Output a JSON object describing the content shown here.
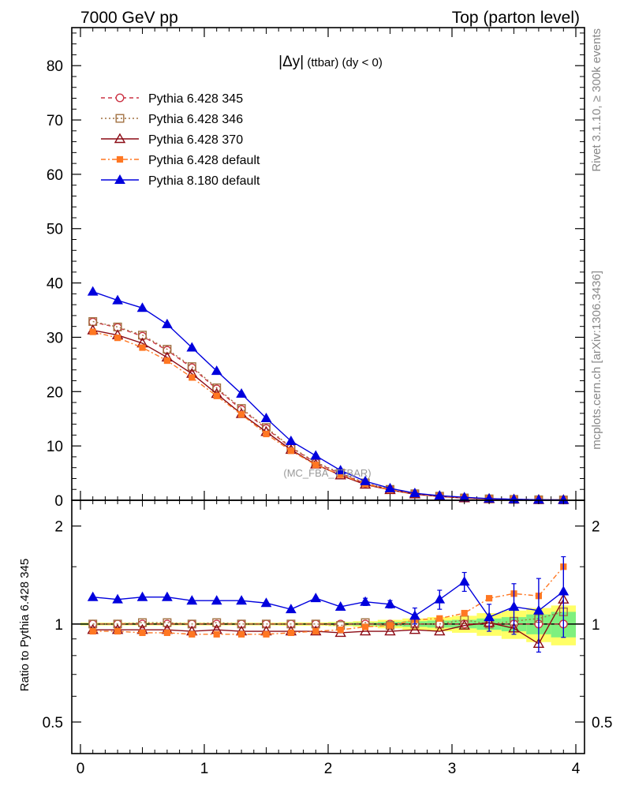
{
  "header": {
    "left_title": "7000 GeV pp",
    "right_title": "Top (parton level)",
    "side_top": "Rivet 3.1.10, ≥ 300k events",
    "side_bottom": "mcplots.cern.ch [arXiv:1306.3436]"
  },
  "chart_data": {
    "type": "line",
    "title": "|Δy| (ttbar) (dy < 0)",
    "title_main": "|Δy|",
    "title_sub": " (ttbar) (dy < 0)",
    "watermark": "(MC_FBA_TTBAR)",
    "xlabel": "",
    "ylabel": "",
    "ratio_ylabel": "Ratio to Pythia 6.428 345",
    "xlim": [
      -0.07,
      4.07
    ],
    "ylim": [
      0,
      87
    ],
    "ratio_ylim": [
      0.4,
      2.4
    ],
    "ratio_scale": "log",
    "x_ticks": [
      0,
      1,
      2,
      3,
      4
    ],
    "y_ticks": [
      0,
      10,
      20,
      30,
      40,
      50,
      60,
      70,
      80
    ],
    "ratio_ticks": [
      0.5,
      1,
      2
    ],
    "grid": false,
    "legend_position": "top-left",
    "x": [
      0.1,
      0.3,
      0.5,
      0.7,
      0.9,
      1.1,
      1.3,
      1.5,
      1.7,
      1.9,
      2.1,
      2.3,
      2.5,
      2.7,
      2.9,
      3.1,
      3.3,
      3.5,
      3.7,
      3.9
    ],
    "series": [
      {
        "name": "Pythia 6.428 345",
        "color": "#cc3344",
        "dash": "5,4",
        "marker": "circle-open",
        "values": [
          32.8,
          31.8,
          30.2,
          27.6,
          24.4,
          20.5,
          16.7,
          13.2,
          9.7,
          6.9,
          4.9,
          3.1,
          2.0,
          1.2,
          0.75,
          0.42,
          0.26,
          0.16,
          0.09,
          0.05
        ],
        "ratio": [
          1.0,
          1.0,
          1.0,
          1.0,
          1.0,
          1.0,
          1.0,
          1.0,
          1.0,
          1.0,
          1.0,
          1.0,
          1.0,
          1.0,
          1.0,
          1.0,
          1.0,
          1.0,
          1.0,
          1.0
        ]
      },
      {
        "name": "Pythia 6.428 346",
        "color": "#a07040",
        "dash": "2,3",
        "marker": "square-open",
        "values": [
          32.9,
          31.9,
          30.4,
          27.8,
          24.6,
          20.7,
          16.9,
          13.4,
          9.8,
          7.0,
          5.0,
          3.2,
          2.0,
          1.2,
          0.75,
          0.43,
          0.26,
          0.16,
          0.09,
          0.06
        ],
        "ratio": [
          1.0,
          1.0,
          1.01,
          1.01,
          1.0,
          1.01,
          1.0,
          1.0,
          1.0,
          1.0,
          0.99,
          1.01,
          0.99,
          1.0,
          1.0,
          1.03,
          1.0,
          1.02,
          1.04,
          1.09
        ]
      },
      {
        "name": "Pythia 6.428 370",
        "color": "#8b0a14",
        "dash": "",
        "marker": "triangle-open",
        "values": [
          31.3,
          30.4,
          28.9,
          26.3,
          23.3,
          19.6,
          15.9,
          12.6,
          9.3,
          6.6,
          4.6,
          2.9,
          1.9,
          1.1,
          0.7,
          0.4,
          0.25,
          0.15,
          0.08,
          0.06
        ],
        "ratio": [
          0.96,
          0.96,
          0.96,
          0.96,
          0.95,
          0.96,
          0.95,
          0.95,
          0.95,
          0.95,
          0.94,
          0.95,
          0.95,
          0.96,
          0.95,
          0.99,
          1.01,
          0.97,
          0.87,
          1.19
        ]
      },
      {
        "name": "Pythia 6.428 default",
        "color": "#ff7722",
        "dash": "6,3,2,3",
        "marker": "square-filled",
        "values": [
          31.0,
          29.9,
          28.1,
          25.7,
          22.6,
          19.2,
          15.8,
          12.2,
          9.1,
          6.5,
          4.7,
          3.0,
          1.9,
          1.2,
          0.75,
          0.45,
          0.3,
          0.2,
          0.11,
          0.07
        ],
        "ratio": [
          0.95,
          0.95,
          0.94,
          0.94,
          0.93,
          0.93,
          0.93,
          0.93,
          0.94,
          0.95,
          0.96,
          0.98,
          0.99,
          1.03,
          1.04,
          1.08,
          1.2,
          1.24,
          1.22,
          1.5
        ]
      },
      {
        "name": "Pythia 8.180 default",
        "color": "#0000dd",
        "dash": "",
        "marker": "triangle-filled",
        "values": [
          38.4,
          36.8,
          35.4,
          32.4,
          28.1,
          23.8,
          19.6,
          15.1,
          10.9,
          8.2,
          5.5,
          3.5,
          2.2,
          1.3,
          0.85,
          0.55,
          0.3,
          0.18,
          0.1,
          0.07
        ],
        "ratio": [
          1.21,
          1.19,
          1.21,
          1.21,
          1.18,
          1.18,
          1.18,
          1.16,
          1.11,
          1.2,
          1.13,
          1.17,
          1.15,
          1.06,
          1.19,
          1.35,
          1.05,
          1.13,
          1.1,
          1.26
        ],
        "ratio_err": [
          0.0,
          0.0,
          0.0,
          0.0,
          0.0,
          0.0,
          0.0,
          0.0,
          0.0,
          0.0,
          0.0,
          0.03,
          0.03,
          0.06,
          0.08,
          0.09,
          0.1,
          0.2,
          0.28,
          0.35
        ]
      }
    ],
    "ratio_band": {
      "inner_color": "#7ff07f",
      "outer_color": "#ffff66",
      "inner_half_width": [
        0.005,
        0.005,
        0.005,
        0.005,
        0.005,
        0.005,
        0.005,
        0.005,
        0.005,
        0.005,
        0.008,
        0.01,
        0.015,
        0.02,
        0.025,
        0.03,
        0.04,
        0.05,
        0.07,
        0.09
      ],
      "outer_half_width": [
        0.01,
        0.01,
        0.01,
        0.01,
        0.01,
        0.01,
        0.01,
        0.01,
        0.012,
        0.012,
        0.015,
        0.02,
        0.03,
        0.04,
        0.05,
        0.06,
        0.08,
        0.1,
        0.12,
        0.14
      ]
    }
  }
}
